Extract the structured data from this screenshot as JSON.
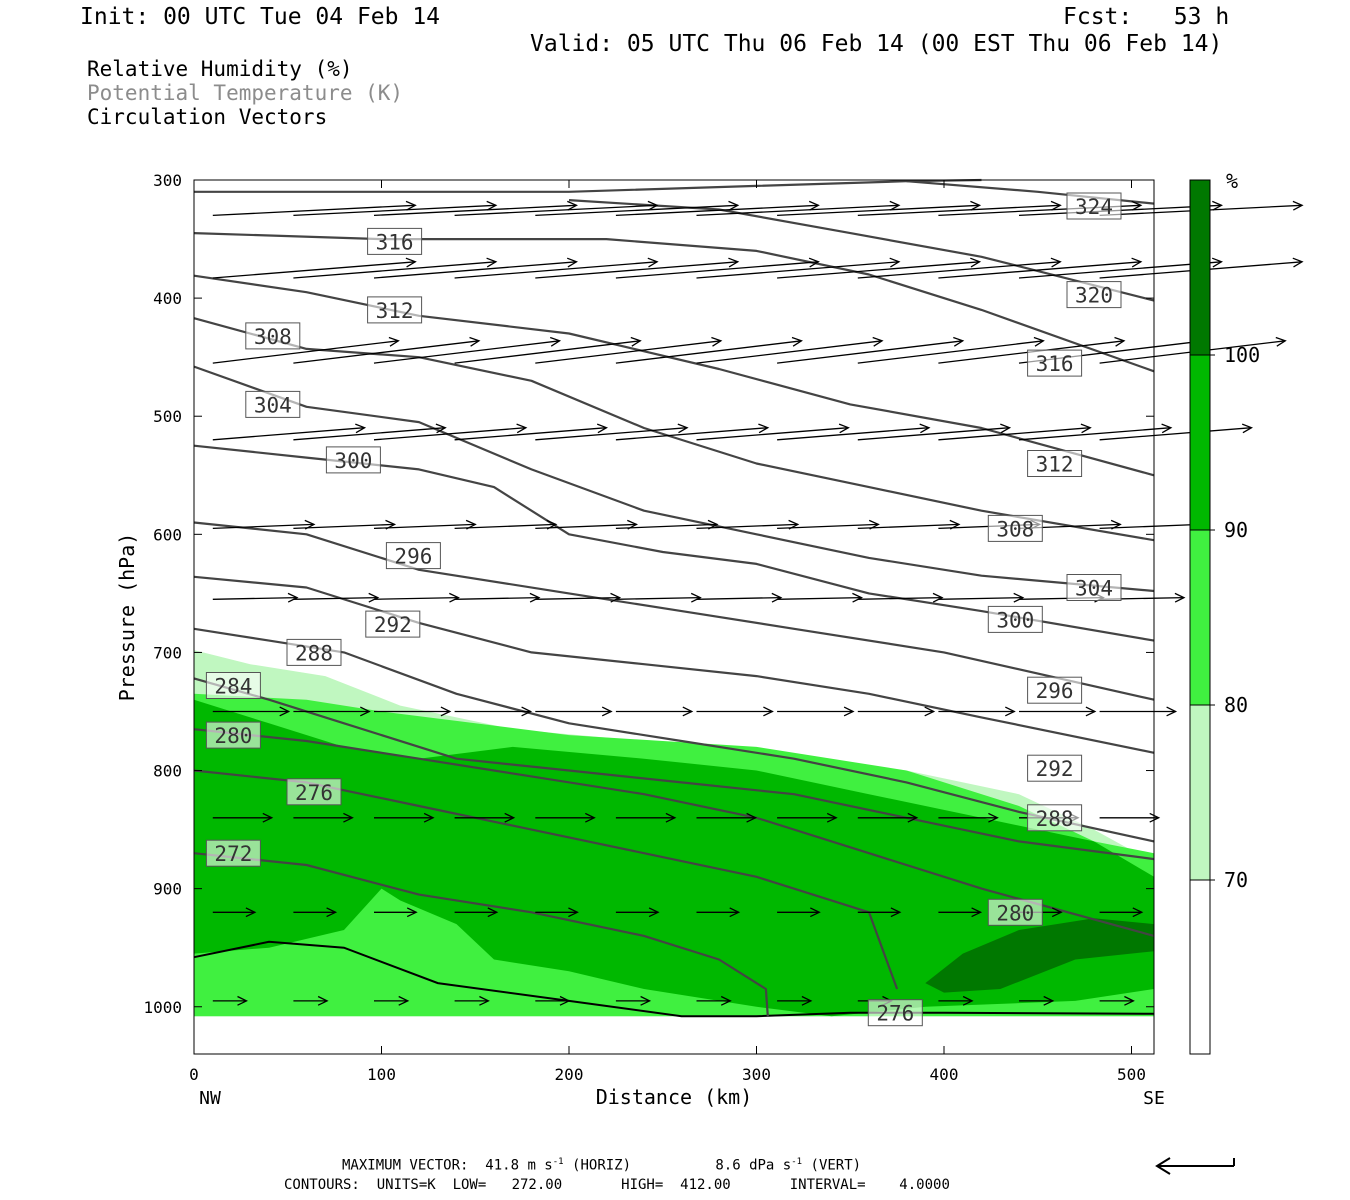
{
  "header": {
    "init": "Init: 00 UTC Tue 04 Feb 14",
    "fcst": "Fcst:   53 h",
    "valid": "Valid: 05 UTC Thu 06 Feb 14 (00 EST Thu 06 Feb 14)"
  },
  "legend_lines": [
    "Relative Humidity (%)",
    "Potential Temperature (K)",
    "Circulation Vectors"
  ],
  "footer": {
    "max_vector_label": "MAXIMUM VECTOR:",
    "horiz_value": "41.8",
    "horiz_unit": "m s",
    "horiz_tag": "(HORIZ)",
    "vert_value": "8.6",
    "vert_unit": "dPa s",
    "vert_tag": "(VERT)",
    "exp": "-1",
    "contours_line": "CONTOURS:  UNITS=K  LOW=   272.00       HIGH=  412.00       INTERVAL=    4.0000"
  },
  "colors": {
    "rh_70_80": "#c0f7c0",
    "rh_80_90": "#40f040",
    "rh_90_100": "#00b800",
    "rh_100": "#007800",
    "contour": "#444444"
  },
  "chart_data": {
    "type": "cross-section",
    "xlabel": "Distance (km)",
    "ylabel": "Pressure (hPa)",
    "x_ticks": [
      0,
      100,
      200,
      300,
      400,
      500
    ],
    "y_ticks": [
      300,
      400,
      500,
      600,
      700,
      800,
      900,
      1000
    ],
    "xlim": [
      0,
      512
    ],
    "ylim": [
      1040,
      300
    ],
    "x_end_labels": {
      "left": "NW",
      "right": "SE"
    },
    "colorbar": {
      "unit": "%",
      "boundaries": [
        70,
        80,
        90,
        100
      ],
      "colors": [
        "#ffffff",
        "#c0f7c0",
        "#40f040",
        "#00b800",
        "#007800"
      ]
    },
    "theta_contours": [
      {
        "value": 324,
        "points": [
          [
            0,
            310
          ],
          [
            200,
            310
          ],
          [
            300,
            305
          ],
          [
            380,
            301
          ],
          [
            420,
            300
          ]
        ]
      },
      {
        "value": 324,
        "points": [
          [
            380,
            301
          ],
          [
            450,
            310
          ],
          [
            512,
            320
          ]
        ]
      },
      {
        "value": 320,
        "points": [
          [
            200,
            317
          ],
          [
            280,
            325
          ],
          [
            350,
            345
          ],
          [
            420,
            365
          ],
          [
            512,
            402
          ]
        ]
      },
      {
        "value": 316,
        "points": [
          [
            0,
            345
          ],
          [
            100,
            350
          ],
          [
            220,
            350
          ],
          [
            300,
            360
          ],
          [
            360,
            380
          ],
          [
            420,
            410
          ],
          [
            512,
            462
          ]
        ]
      },
      {
        "value": 312,
        "points": [
          [
            0,
            381
          ],
          [
            60,
            395
          ],
          [
            120,
            415
          ],
          [
            200,
            430
          ],
          [
            280,
            460
          ],
          [
            350,
            490
          ],
          [
            420,
            510
          ],
          [
            512,
            550
          ]
        ]
      },
      {
        "value": 308,
        "points": [
          [
            0,
            417
          ],
          [
            60,
            443
          ],
          [
            120,
            450
          ],
          [
            180,
            470
          ],
          [
            240,
            510
          ],
          [
            300,
            540
          ],
          [
            360,
            560
          ],
          [
            420,
            580
          ],
          [
            512,
            605
          ]
        ]
      },
      {
        "value": 304,
        "points": [
          [
            0,
            458
          ],
          [
            60,
            492
          ],
          [
            120,
            505
          ],
          [
            180,
            545
          ],
          [
            240,
            580
          ],
          [
            300,
            600
          ],
          [
            360,
            620
          ],
          [
            420,
            635
          ],
          [
            512,
            648
          ]
        ]
      },
      {
        "value": 300,
        "points": [
          [
            0,
            525
          ],
          [
            60,
            535
          ],
          [
            120,
            545
          ],
          [
            160,
            560
          ],
          [
            200,
            600
          ],
          [
            250,
            615
          ],
          [
            300,
            625
          ],
          [
            360,
            650
          ],
          [
            420,
            665
          ],
          [
            512,
            690
          ]
        ]
      },
      {
        "value": 296,
        "points": [
          [
            0,
            590
          ],
          [
            60,
            600
          ],
          [
            120,
            630
          ],
          [
            200,
            650
          ],
          [
            260,
            665
          ],
          [
            320,
            680
          ],
          [
            400,
            700
          ],
          [
            512,
            740
          ]
        ]
      },
      {
        "value": 292,
        "points": [
          [
            0,
            636
          ],
          [
            60,
            645
          ],
          [
            120,
            675
          ],
          [
            180,
            700
          ],
          [
            240,
            710
          ],
          [
            300,
            720
          ],
          [
            360,
            735
          ],
          [
            420,
            755
          ],
          [
            512,
            785
          ]
        ]
      },
      {
        "value": 288,
        "points": [
          [
            0,
            680
          ],
          [
            40,
            690
          ],
          [
            80,
            700
          ],
          [
            140,
            735
          ],
          [
            200,
            760
          ],
          [
            260,
            775
          ],
          [
            320,
            790
          ],
          [
            380,
            810
          ],
          [
            440,
            835
          ],
          [
            512,
            860
          ]
        ]
      },
      {
        "value": 284,
        "points": [
          [
            0,
            722
          ],
          [
            40,
            740
          ],
          [
            80,
            760
          ],
          [
            140,
            790
          ],
          [
            200,
            800
          ],
          [
            260,
            810
          ],
          [
            320,
            820
          ],
          [
            380,
            840
          ],
          [
            440,
            860
          ],
          [
            512,
            875
          ]
        ]
      },
      {
        "value": 280,
        "points": [
          [
            0,
            765
          ],
          [
            60,
            775
          ],
          [
            120,
            790
          ],
          [
            180,
            805
          ],
          [
            240,
            820
          ],
          [
            300,
            840
          ],
          [
            360,
            870
          ],
          [
            420,
            900
          ],
          [
            512,
            940
          ]
        ]
      },
      {
        "value": 276,
        "points": [
          [
            0,
            800
          ],
          [
            60,
            810
          ],
          [
            120,
            830
          ],
          [
            180,
            850
          ],
          [
            240,
            870
          ],
          [
            300,
            890
          ],
          [
            360,
            920
          ],
          [
            375,
            985
          ]
        ]
      },
      {
        "value": 272,
        "points": [
          [
            0,
            870
          ],
          [
            60,
            880
          ],
          [
            120,
            905
          ],
          [
            180,
            920
          ],
          [
            240,
            940
          ],
          [
            280,
            960
          ],
          [
            305,
            985
          ],
          [
            306,
            1008
          ]
        ]
      }
    ],
    "contour_labels": [
      {
        "value": 324,
        "x": 480,
        "p": 322
      },
      {
        "value": 320,
        "x": 480,
        "p": 397
      },
      {
        "value": 316,
        "x": 107,
        "p": 352
      },
      {
        "value": 316,
        "x": 459,
        "p": 455
      },
      {
        "value": 312,
        "x": 107,
        "p": 410
      },
      {
        "value": 312,
        "x": 459,
        "p": 540
      },
      {
        "value": 308,
        "x": 42,
        "p": 432
      },
      {
        "value": 308,
        "x": 438,
        "p": 595
      },
      {
        "value": 304,
        "x": 42,
        "p": 490
      },
      {
        "value": 304,
        "x": 480,
        "p": 645
      },
      {
        "value": 300,
        "x": 85,
        "p": 537
      },
      {
        "value": 300,
        "x": 438,
        "p": 672
      },
      {
        "value": 296,
        "x": 117,
        "p": 618
      },
      {
        "value": 296,
        "x": 459,
        "p": 732
      },
      {
        "value": 292,
        "x": 106,
        "p": 676
      },
      {
        "value": 292,
        "x": 459,
        "p": 798
      },
      {
        "value": 288,
        "x": 64,
        "p": 700
      },
      {
        "value": 288,
        "x": 459,
        "p": 840
      },
      {
        "value": 284,
        "x": 21,
        "p": 728
      },
      {
        "value": 280,
        "x": 21,
        "p": 770
      },
      {
        "value": 280,
        "x": 438,
        "p": 920
      },
      {
        "value": 276,
        "x": 64,
        "p": 818
      },
      {
        "value": 276,
        "x": 374,
        "p": 1005
      },
      {
        "value": 272,
        "x": 21,
        "p": 870
      }
    ],
    "rh_regions": [
      {
        "level": "70-80",
        "points": [
          [
            0,
            698
          ],
          [
            30,
            710
          ],
          [
            70,
            720
          ],
          [
            110,
            745
          ],
          [
            170,
            765
          ],
          [
            240,
            775
          ],
          [
            300,
            785
          ],
          [
            380,
            800
          ],
          [
            440,
            820
          ],
          [
            480,
            850
          ],
          [
            512,
            878
          ],
          [
            512,
            1008
          ],
          [
            0,
            1008
          ]
        ]
      },
      {
        "level": "80-90",
        "points": [
          [
            0,
            735
          ],
          [
            60,
            740
          ],
          [
            100,
            750
          ],
          [
            150,
            760
          ],
          [
            200,
            770
          ],
          [
            300,
            780
          ],
          [
            380,
            800
          ],
          [
            440,
            830
          ],
          [
            480,
            860
          ],
          [
            512,
            870
          ],
          [
            512,
            1008
          ],
          [
            0,
            1008
          ]
        ]
      },
      {
        "level": "90-100",
        "points": [
          [
            0,
            740
          ],
          [
            40,
            760
          ],
          [
            80,
            780
          ],
          [
            120,
            790
          ],
          [
            170,
            780
          ],
          [
            240,
            790
          ],
          [
            300,
            800
          ],
          [
            360,
            820
          ],
          [
            420,
            840
          ],
          [
            480,
            860
          ],
          [
            512,
            890
          ],
          [
            512,
            985
          ],
          [
            470,
            995
          ],
          [
            390,
            1000
          ],
          [
            340,
            1008
          ],
          [
            300,
            1000
          ],
          [
            240,
            985
          ],
          [
            200,
            970
          ],
          [
            160,
            960
          ],
          [
            140,
            930
          ],
          [
            110,
            910
          ],
          [
            100,
            900
          ],
          [
            80,
            935
          ],
          [
            40,
            950
          ],
          [
            0,
            955
          ]
        ]
      },
      {
        "level": "100+",
        "points": [
          [
            390,
            980
          ],
          [
            410,
            955
          ],
          [
            440,
            935
          ],
          [
            480,
            925
          ],
          [
            512,
            930
          ],
          [
            512,
            953
          ],
          [
            470,
            960
          ],
          [
            430,
            985
          ],
          [
            400,
            988
          ]
        ]
      }
    ],
    "terrain": {
      "points": [
        [
          0,
          958
        ],
        [
          40,
          945
        ],
        [
          80,
          950
        ],
        [
          130,
          980
        ],
        [
          200,
          995
        ],
        [
          260,
          1008
        ],
        [
          300,
          1008
        ],
        [
          350,
          1005
        ],
        [
          400,
          1005
        ],
        [
          512,
          1006
        ]
      ]
    },
    "vector_rows": [
      {
        "p": 330,
        "x0": 10,
        "dx": 43,
        "len": 24,
        "slope": -0.05,
        "start": 0.5,
        "end": 512
      },
      {
        "p": 383,
        "x0": 10,
        "dx": 43,
        "len": 24,
        "slope": -0.08,
        "start": 0.5,
        "end": 512
      },
      {
        "p": 455,
        "x0": 10,
        "dx": 43,
        "len": 22,
        "slope": -0.12,
        "start": 0.5,
        "end": 512
      },
      {
        "p": 520,
        "x0": 10,
        "dx": 43,
        "len": 18,
        "slope": -0.08,
        "start": 0.5,
        "end": 512
      },
      {
        "p": 595,
        "x0": 10,
        "dx": 43,
        "len": 12,
        "slope": -0.04,
        "start": 0.5,
        "end": 512
      },
      {
        "p": 655,
        "x0": 10,
        "dx": 43,
        "len": 10,
        "slope": -0.02,
        "start": 0.5,
        "end": 512
      },
      {
        "p": 750,
        "x0": 10,
        "dx": 43,
        "len": 9,
        "slope": 0.0,
        "start": 0.5,
        "end": 512
      },
      {
        "p": 840,
        "x0": 10,
        "dx": 43,
        "len": 7,
        "slope": 0.0,
        "start": 0.5,
        "end": 512
      },
      {
        "p": 920,
        "x0": 10,
        "dx": 43,
        "len": 5,
        "slope": 0.0,
        "start": 0.5,
        "end": 512
      },
      {
        "p": 995,
        "x0": 10,
        "dx": 43,
        "len": 4,
        "slope": 0.0,
        "start": 0.5,
        "end": 512
      }
    ]
  }
}
